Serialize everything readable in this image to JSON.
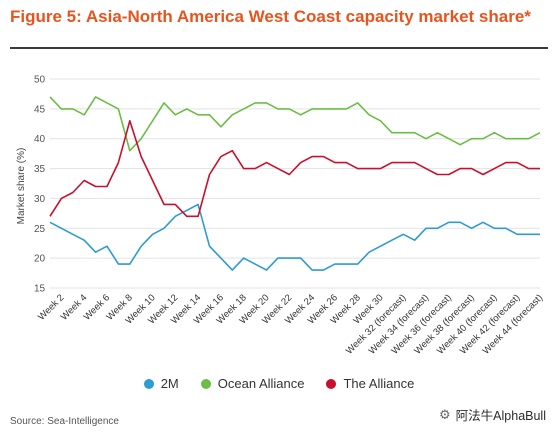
{
  "title": "Figure 5: Asia-North America West Coast capacity market share*",
  "source": "Source: Sea-Intelligence",
  "watermark": "阿法牛AlphaBull",
  "colors": {
    "title": "#e8541e",
    "2M": "#2e9bd1",
    "Ocean Alliance": "#6bbd45",
    "The Alliance": "#c8102e",
    "grid": "#e3e3e3"
  },
  "chart_data": {
    "type": "line",
    "ylabel": "Market share (%)",
    "xlabel": "",
    "ylim": [
      15,
      50
    ],
    "yticks": [
      15,
      20,
      25,
      30,
      35,
      40,
      45,
      50
    ],
    "grid": true,
    "legend_position": "bottom",
    "x": [
      "Week 1",
      "Week 2",
      "Week 3",
      "Week 4",
      "Week 5",
      "Week 6",
      "Week 7",
      "Week 8",
      "Week 9",
      "Week 10",
      "Week 11",
      "Week 12",
      "Week 13",
      "Week 14",
      "Week 15",
      "Week 16",
      "Week 17",
      "Week 18",
      "Week 19",
      "Week 20",
      "Week 21",
      "Week 22",
      "Week 23",
      "Week 24",
      "Week 25",
      "Week 26",
      "Week 27",
      "Week 28",
      "Week 29",
      "Week 30",
      "Week 31 (forecast)",
      "Week 32 (forecast)",
      "Week 33 (forecast)",
      "Week 34 (forecast)",
      "Week 35 (forecast)",
      "Week 36 (forecast)",
      "Week 37 (forecast)",
      "Week 38 (forecast)",
      "Week 39 (forecast)",
      "Week 40 (forecast)",
      "Week 41 (forecast)",
      "Week 42 (forecast)",
      "Week 43 (forecast)",
      "Week 44 (forecast)"
    ],
    "x_tick_labels": [
      "Week 2",
      "Week 4",
      "Week 6",
      "Week 8",
      "Week 10",
      "Week 12",
      "Week 14",
      "Week 16",
      "Week 18",
      "Week 20",
      "Week 22",
      "Week 24",
      "Week 26",
      "Week 28",
      "Week 30",
      "Week 32 (forecast)",
      "Week 34 (forecast)",
      "Week 36 (forecast)",
      "Week 38 (forecast)",
      "Week 40 (forecast)",
      "Week 42 (forecast)",
      "Week 44 (forecast)"
    ],
    "series": [
      {
        "name": "2M",
        "values": [
          26,
          25,
          24,
          23,
          21,
          22,
          19,
          19,
          22,
          24,
          25,
          27,
          28,
          29,
          22,
          20,
          18,
          20,
          19,
          18,
          20,
          20,
          20,
          18,
          18,
          19,
          19,
          19,
          21,
          22,
          23,
          24,
          23,
          25,
          25,
          26,
          26,
          25,
          26,
          25,
          25,
          24,
          24,
          24
        ]
      },
      {
        "name": "Ocean Alliance",
        "values": [
          47,
          45,
          45,
          44,
          47,
          46,
          45,
          38,
          40,
          43,
          46,
          44,
          45,
          44,
          44,
          42,
          44,
          45,
          46,
          46,
          45,
          45,
          44,
          45,
          45,
          45,
          45,
          46,
          44,
          43,
          41,
          41,
          41,
          40,
          41,
          40,
          39,
          40,
          40,
          41,
          40,
          40,
          40,
          41
        ]
      },
      {
        "name": "The Alliance",
        "values": [
          27,
          30,
          31,
          33,
          32,
          32,
          36,
          43,
          37,
          33,
          29,
          29,
          27,
          27,
          34,
          37,
          38,
          35,
          35,
          36,
          35,
          34,
          36,
          37,
          37,
          36,
          36,
          35,
          35,
          35,
          36,
          36,
          36,
          35,
          34,
          34,
          35,
          35,
          34,
          35,
          36,
          36,
          35,
          35
        ]
      }
    ]
  }
}
